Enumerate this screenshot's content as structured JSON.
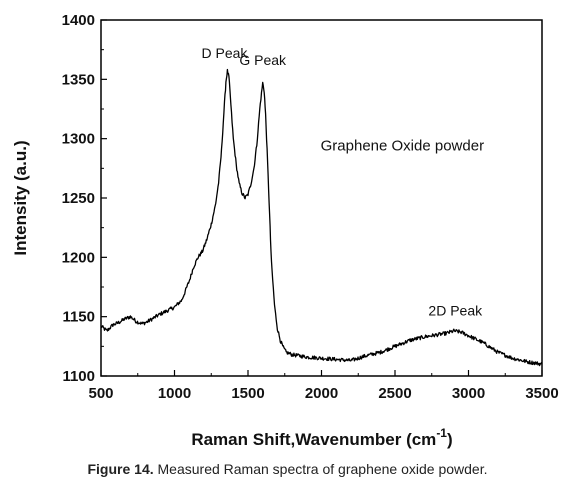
{
  "chart_data": {
    "type": "line",
    "title": "",
    "xlabel": "Raman Shift,Wavenumber (cm",
    "xlabel_sup": "-1",
    "xlabel_close": ")",
    "ylabel": "Intensity (a.u.)",
    "xlim": [
      500,
      3500
    ],
    "ylim": [
      1100,
      1400
    ],
    "x_ticks": [
      500,
      1000,
      1500,
      2000,
      2500,
      3000,
      3500
    ],
    "y_ticks": [
      1100,
      1150,
      1200,
      1250,
      1300,
      1350,
      1400
    ],
    "grid": false,
    "legend": "none",
    "line_color": "#000000",
    "series": [
      {
        "x": [
          500,
          540,
          580,
          620,
          660,
          700,
          740,
          780,
          820,
          860,
          900,
          950,
          1000,
          1050,
          1100,
          1130,
          1160,
          1190,
          1220,
          1250,
          1280,
          1300,
          1320,
          1340,
          1350,
          1360,
          1370,
          1380,
          1400,
          1420,
          1440,
          1460,
          1480,
          1500,
          1520,
          1540,
          1560,
          1580,
          1600,
          1610,
          1620,
          1630,
          1640,
          1650,
          1660,
          1680,
          1700,
          1720,
          1740,
          1760,
          1800,
          1900,
          2000,
          2100,
          2200,
          2300,
          2400,
          2500,
          2600,
          2700,
          2800,
          2850,
          2900,
          2950,
          3000,
          3100,
          3200,
          3300,
          3400,
          3500
        ],
        "y": [
          1142,
          1138,
          1143,
          1145,
          1148,
          1150,
          1146,
          1144,
          1146,
          1149,
          1152,
          1155,
          1158,
          1164,
          1180,
          1192,
          1200,
          1205,
          1215,
          1228,
          1245,
          1263,
          1290,
          1330,
          1348,
          1357,
          1352,
          1335,
          1300,
          1278,
          1262,
          1254,
          1250,
          1253,
          1262,
          1275,
          1295,
          1325,
          1347,
          1340,
          1320,
          1290,
          1258,
          1225,
          1195,
          1160,
          1140,
          1130,
          1124,
          1120,
          1118,
          1116,
          1115,
          1114,
          1113,
          1117,
          1120,
          1125,
          1130,
          1133,
          1135,
          1136,
          1138,
          1137,
          1134,
          1128,
          1120,
          1115,
          1112,
          1110
        ]
      }
    ],
    "annotations": [
      {
        "text": "D Peak",
        "x": 1340,
        "y": 1368
      },
      {
        "text": "G Peak",
        "x": 1600,
        "y": 1362
      },
      {
        "text": "Graphene Oxide powder",
        "x": 2550,
        "y": 1290
      },
      {
        "text": "2D Peak",
        "x": 2910,
        "y": 1151
      }
    ]
  },
  "caption": {
    "prefix": "Figure 14.",
    "text": " Measured Raman spectra of graphene oxide powder."
  }
}
